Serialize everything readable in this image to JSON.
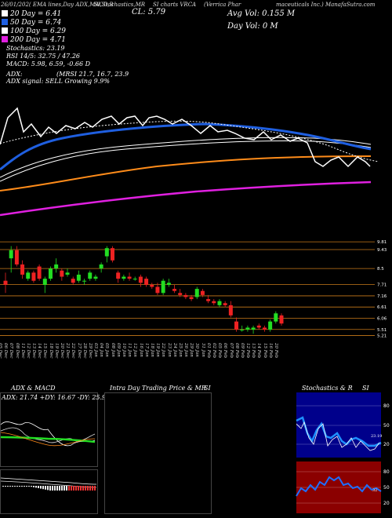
{
  "header": {
    "line1_left": "26/01/202( EMA lines,Day ADX,MACD,B",
    "line1_mid": "SI,Stochastics,MR",
    "line1_mid2": "SI charts VRCA",
    "line1_right": "(Verrica Phar",
    "line1_far": "maceuticals Inc.) ManafaSutra.com",
    "cl": "CL: 5.79",
    "avg_vol": "Avg Vol: 0.155 M",
    "day_vol": "Day Vol: 0 M"
  },
  "legend": [
    {
      "label": "20 Day = 6.41",
      "color": "#ffffff"
    },
    {
      "label": "50 Day = 6.74",
      "color": "#1f5fe0"
    },
    {
      "label": "100 Day = 6.29",
      "color": "#ffffff"
    },
    {
      "label": "200 Day = 4.71",
      "color": "#e020e0"
    }
  ],
  "indicators": {
    "stochastics": "Stochastics: 23.19",
    "rsi": "RSI 14/5: 32.75 / 47.26",
    "macd": "MACD: 5.98, 6.59, -0.66 D",
    "adx": "ADX:",
    "mrsi": "(MRSI 21.7, 16.7, 23.9",
    "signal": "ADX signal: SELL Growing 9.9%"
  },
  "price_levels": [
    "9.81",
    "9.43",
    "8.5",
    "7.71",
    "7.16",
    "6.61",
    "6.06",
    "5.51",
    "5.21"
  ],
  "date_labels": [
    "05 Dec",
    "06 Dec",
    "07 Dec",
    "08 Dec",
    "11 Dec",
    "12 Dec",
    "13 Dec",
    "14 Dec",
    "15 Dec",
    "18 Dec",
    "19 Dec",
    "20 Dec",
    "21 Dec",
    "22 Dec",
    "27 Dec",
    "28 Dec",
    "29 Dec",
    "03 Jan",
    "04 Jan",
    "05 Jan",
    "08 Jan",
    "09 Jan",
    "10 Jan",
    "11 Jan",
    "12 Jan",
    "16 Jan",
    "17 Jan",
    "18 Jan",
    "19 Jan",
    "22 Jan",
    "23 Jan",
    "24 Jan",
    "25 Jan",
    "26 Jan",
    "29 Jan",
    "30 Jan",
    "31 Jan",
    "01 Feb",
    "02 Feb",
    "05 Feb",
    "06 Feb",
    "07 Feb",
    "08 Feb",
    "09 Feb",
    "12 Feb",
    "13 Feb",
    "14 Feb",
    "15 Feb",
    "16 Feb",
    "20 Feb"
  ],
  "panels": {
    "adx_title": "ADX & MACD",
    "adx_values": "ADX: 21.74  +DY: 16.67 -DY: 25.98",
    "intra_title": "Intra Day Trading Price & MR",
    "intra_si": "SI",
    "stoch_title": "Stochastics & R",
    "stoch_si": "SI",
    "stoch_ticks": [
      "80",
      "50",
      "20"
    ],
    "rsi_ticks": [
      "80",
      "50",
      "20"
    ],
    "stoch_readout": "23.19",
    "rsi_readout": "32"
  },
  "chart_data": {
    "type": "candlestick",
    "ticker": "VRCA",
    "close": 5.79,
    "candles": [
      {
        "o": 7.9,
        "h": 8.3,
        "l": 7.3,
        "c": 7.7
      },
      {
        "o": 9.0,
        "h": 9.6,
        "l": 8.3,
        "c": 9.4
      },
      {
        "o": 9.4,
        "h": 9.6,
        "l": 8.6,
        "c": 8.7
      },
      {
        "o": 8.7,
        "h": 8.9,
        "l": 8.0,
        "c": 8.2
      },
      {
        "o": 8.0,
        "h": 8.4,
        "l": 7.9,
        "c": 8.3
      },
      {
        "o": 8.3,
        "h": 8.4,
        "l": 7.8,
        "c": 7.9
      },
      {
        "o": 8.6,
        "h": 8.7,
        "l": 7.9,
        "c": 8.0
      },
      {
        "o": 7.7,
        "h": 8.1,
        "l": 7.3,
        "c": 8.0
      },
      {
        "o": 8.0,
        "h": 8.6,
        "l": 7.9,
        "c": 8.5
      },
      {
        "o": 8.5,
        "h": 9.0,
        "l": 8.3,
        "c": 8.7
      },
      {
        "o": 8.4,
        "h": 8.5,
        "l": 7.9,
        "c": 8.1
      },
      {
        "o": 8.2,
        "h": 8.5,
        "l": 8.1,
        "c": 8.3
      },
      {
        "o": 8.0,
        "h": 8.1,
        "l": 7.7,
        "c": 7.8
      },
      {
        "o": 7.9,
        "h": 8.4,
        "l": 7.8,
        "c": 8.2
      },
      {
        "o": 7.9,
        "h": 8.0,
        "l": 7.7,
        "c": 7.9
      },
      {
        "o": 8.0,
        "h": 8.4,
        "l": 7.9,
        "c": 8.3
      },
      {
        "o": 8.0,
        "h": 8.2,
        "l": 7.9,
        "c": 8.1
      },
      {
        "o": 8.5,
        "h": 8.8,
        "l": 8.3,
        "c": 8.7
      },
      {
        "o": 9.1,
        "h": 9.6,
        "l": 8.8,
        "c": 9.5
      },
      {
        "o": 9.5,
        "h": 9.6,
        "l": 8.8,
        "c": 8.9
      },
      {
        "o": 8.3,
        "h": 8.4,
        "l": 7.8,
        "c": 8.0
      },
      {
        "o": 8.0,
        "h": 8.2,
        "l": 7.9,
        "c": 8.1
      },
      {
        "o": 8.1,
        "h": 8.3,
        "l": 7.9,
        "c": 8.0
      },
      {
        "o": 8.0,
        "h": 8.1,
        "l": 7.9,
        "c": 8.0
      },
      {
        "o": 8.1,
        "h": 8.2,
        "l": 7.6,
        "c": 7.8
      },
      {
        "o": 8.0,
        "h": 8.1,
        "l": 7.6,
        "c": 7.7
      },
      {
        "o": 7.7,
        "h": 7.8,
        "l": 7.5,
        "c": 7.6
      },
      {
        "o": 7.6,
        "h": 7.8,
        "l": 7.2,
        "c": 7.3
      },
      {
        "o": 7.3,
        "h": 8.0,
        "l": 7.2,
        "c": 7.9
      },
      {
        "o": 7.7,
        "h": 8.0,
        "l": 7.6,
        "c": 7.8
      },
      {
        "o": 7.5,
        "h": 7.7,
        "l": 7.3,
        "c": 7.4
      },
      {
        "o": 7.3,
        "h": 7.5,
        "l": 7.1,
        "c": 7.2
      },
      {
        "o": 7.2,
        "h": 7.3,
        "l": 7.0,
        "c": 7.1
      },
      {
        "o": 7.1,
        "h": 7.2,
        "l": 6.9,
        "c": 7.0
      },
      {
        "o": 7.1,
        "h": 7.6,
        "l": 7.0,
        "c": 7.5
      },
      {
        "o": 7.4,
        "h": 7.5,
        "l": 7.1,
        "c": 7.2
      },
      {
        "o": 7.0,
        "h": 7.2,
        "l": 6.8,
        "c": 6.9
      },
      {
        "o": 6.9,
        "h": 7.0,
        "l": 6.7,
        "c": 6.8
      },
      {
        "o": 6.7,
        "h": 7.0,
        "l": 6.6,
        "c": 6.9
      },
      {
        "o": 6.8,
        "h": 6.9,
        "l": 6.6,
        "c": 6.7
      },
      {
        "o": 6.7,
        "h": 6.9,
        "l": 6.1,
        "c": 6.2
      },
      {
        "o": 5.9,
        "h": 6.1,
        "l": 5.4,
        "c": 5.5
      },
      {
        "o": 5.5,
        "h": 5.7,
        "l": 5.4,
        "c": 5.5
      },
      {
        "o": 5.5,
        "h": 5.7,
        "l": 5.4,
        "c": 5.6
      },
      {
        "o": 5.5,
        "h": 5.7,
        "l": 5.3,
        "c": 5.6
      },
      {
        "o": 5.7,
        "h": 5.8,
        "l": 5.5,
        "c": 5.6
      },
      {
        "o": 5.6,
        "h": 5.7,
        "l": 5.4,
        "c": 5.5
      },
      {
        "o": 5.5,
        "h": 6.0,
        "l": 5.4,
        "c": 5.9
      },
      {
        "o": 5.9,
        "h": 6.4,
        "l": 5.8,
        "c": 6.3
      },
      {
        "o": 6.2,
        "h": 6.3,
        "l": 5.7,
        "c": 5.8
      }
    ]
  }
}
